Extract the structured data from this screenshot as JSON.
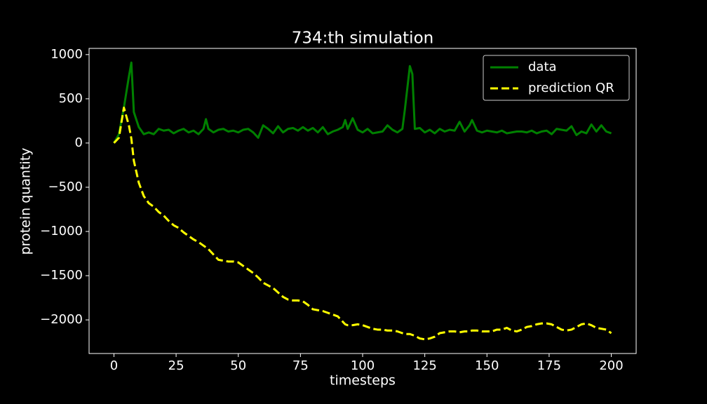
{
  "chart_data": {
    "type": "line",
    "title": "734:th simulation",
    "x_label": "timesteps",
    "y_label": "protein quantity",
    "x": [
      0,
      2,
      4,
      6,
      7,
      8,
      10,
      12,
      14,
      16,
      18,
      20,
      22,
      24,
      26,
      28,
      30,
      32,
      34,
      36,
      37,
      38,
      40,
      42,
      44,
      46,
      48,
      50,
      52,
      54,
      56,
      58,
      60,
      62,
      64,
      66,
      68,
      70,
      72,
      74,
      76,
      78,
      80,
      82,
      84,
      86,
      88,
      90,
      92,
      93,
      94,
      96,
      98,
      100,
      102,
      104,
      106,
      108,
      110,
      112,
      114,
      116,
      117,
      119,
      120,
      121,
      123,
      125,
      127,
      129,
      131,
      133,
      135,
      137,
      139,
      141,
      143,
      144,
      146,
      148,
      150,
      152,
      154,
      156,
      158,
      160,
      162,
      164,
      166,
      168,
      170,
      172,
      174,
      176,
      178,
      180,
      182,
      184,
      186,
      188,
      190,
      192,
      194,
      196,
      198,
      200
    ],
    "series": [
      {
        "name": "data",
        "color": "#008000",
        "linestyle": "solid",
        "values": [
          0,
          100,
          400,
          750,
          910,
          350,
          180,
          100,
          120,
          100,
          160,
          140,
          150,
          110,
          140,
          160,
          120,
          140,
          100,
          160,
          270,
          160,
          120,
          150,
          160,
          130,
          140,
          120,
          150,
          160,
          120,
          60,
          200,
          160,
          110,
          190,
          120,
          160,
          170,
          140,
          180,
          140,
          170,
          120,
          180,
          100,
          130,
          150,
          180,
          260,
          160,
          280,
          150,
          120,
          160,
          110,
          120,
          130,
          200,
          150,
          120,
          160,
          380,
          870,
          780,
          160,
          170,
          120,
          150,
          110,
          160,
          130,
          150,
          140,
          240,
          130,
          200,
          260,
          140,
          120,
          140,
          130,
          120,
          140,
          110,
          120,
          130,
          130,
          120,
          140,
          110,
          130,
          140,
          100,
          160,
          150,
          140,
          190,
          90,
          130,
          110,
          210,
          130,
          200,
          130,
          110
        ]
      },
      {
        "name": "prediction QR",
        "color": "#ffff00",
        "linestyle": "dashed",
        "values": [
          0,
          60,
          400,
          200,
          50,
          -200,
          -450,
          -600,
          -680,
          -720,
          -780,
          -820,
          -880,
          -930,
          -960,
          -1010,
          -1050,
          -1090,
          -1120,
          -1160,
          -1180,
          -1200,
          -1260,
          -1320,
          -1330,
          -1340,
          -1340,
          -1350,
          -1390,
          -1430,
          -1470,
          -1520,
          -1580,
          -1610,
          -1640,
          -1690,
          -1740,
          -1770,
          -1780,
          -1780,
          -1790,
          -1830,
          -1880,
          -1890,
          -1900,
          -1920,
          -1940,
          -1960,
          -2020,
          -2050,
          -2060,
          -2060,
          -2050,
          -2060,
          -2080,
          -2100,
          -2110,
          -2110,
          -2120,
          -2120,
          -2130,
          -2150,
          -2160,
          -2160,
          -2170,
          -2180,
          -2210,
          -2220,
          -2210,
          -2190,
          -2150,
          -2140,
          -2130,
          -2130,
          -2140,
          -2130,
          -2130,
          -2120,
          -2120,
          -2130,
          -2130,
          -2130,
          -2110,
          -2110,
          -2090,
          -2120,
          -2130,
          -2110,
          -2080,
          -2070,
          -2050,
          -2040,
          -2040,
          -2050,
          -2080,
          -2110,
          -2120,
          -2110,
          -2080,
          -2050,
          -2040,
          -2060,
          -2090,
          -2100,
          -2110,
          -2150
        ]
      }
    ],
    "xlim": [
      -10,
      210
    ],
    "xticks": [
      0,
      25,
      50,
      75,
      100,
      125,
      150,
      175,
      200
    ],
    "ylim": [
      -2380,
      1070
    ],
    "yticks": [
      1000,
      500,
      0,
      {
        "value": -500,
        "label": "−500"
      },
      {
        "value": -1000,
        "label": "−1000"
      },
      {
        "value": -1500,
        "label": "−1500"
      },
      {
        "value": -2000,
        "label": "−2000"
      }
    ],
    "legend": "upper right",
    "grid": false
  }
}
